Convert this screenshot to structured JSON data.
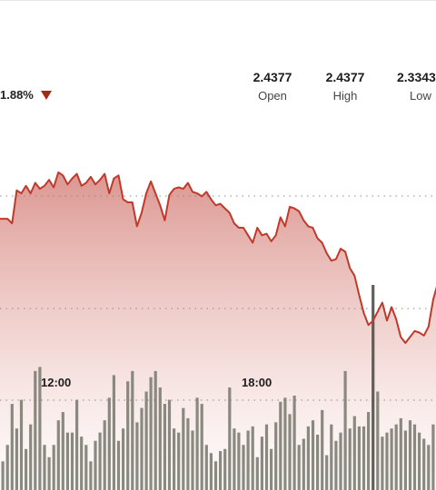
{
  "header": {
    "change_percent": "1.88%",
    "change_direction": "down",
    "down_color": "#a32a18"
  },
  "stats": {
    "open": {
      "value": "2.4377",
      "label": "Open"
    },
    "high": {
      "value": "2.4377",
      "label": "High"
    },
    "low": {
      "value": "2.3343",
      "label": "Low"
    }
  },
  "colors": {
    "line": "#c0392b",
    "area_top": "#d88a84",
    "volume_bar": "#7d7d73",
    "volume_bar_highlight": "#4f4f48"
  },
  "chart_data": {
    "type": "area",
    "time_labels": [
      "12:00",
      "18:00"
    ],
    "price": [
      2.401,
      2.401,
      2.401,
      2.398,
      2.42,
      2.418,
      2.423,
      2.418,
      2.425,
      2.421,
      2.423,
      2.427,
      2.422,
      2.432,
      2.43,
      2.424,
      2.428,
      2.431,
      2.423,
      2.425,
      2.429,
      2.424,
      2.427,
      2.431,
      2.418,
      2.428,
      2.43,
      2.414,
      2.412,
      2.412,
      2.396,
      2.405,
      2.418,
      2.426,
      2.418,
      2.41,
      2.4,
      2.417,
      2.421,
      2.422,
      2.421,
      2.425,
      2.419,
      2.418,
      2.416,
      2.419,
      2.414,
      2.41,
      2.411,
      2.408,
      2.405,
      2.398,
      2.395,
      2.395,
      2.39,
      2.385,
      2.395,
      2.39,
      2.391,
      2.386,
      2.39,
      2.402,
      2.396,
      2.409,
      2.408,
      2.406,
      2.4,
      2.396,
      2.395,
      2.388,
      2.385,
      2.378,
      2.373,
      2.374,
      2.381,
      2.379,
      2.368,
      2.363,
      2.35,
      2.338,
      2.33,
      2.333,
      2.339,
      2.345,
      2.333,
      2.342,
      2.334,
      2.322,
      2.318,
      2.322,
      2.326,
      2.325,
      2.323,
      2.329,
      2.347,
      2.358
    ],
    "volume": [
      10,
      14,
      22,
      42,
      30,
      44,
      20,
      32,
      58,
      60,
      22,
      16,
      22,
      34,
      38,
      28,
      28,
      44,
      26,
      22,
      14,
      24,
      28,
      34,
      45,
      56,
      24,
      30,
      53,
      58,
      33,
      40,
      48,
      55,
      58,
      50,
      42,
      44,
      30,
      28,
      40,
      35,
      29,
      45,
      42,
      22,
      18,
      14,
      19,
      20,
      50,
      30,
      28,
      22,
      29,
      31,
      16,
      26,
      32,
      20,
      33,
      43,
      45,
      37,
      46,
      22,
      25,
      31,
      34,
      27,
      39,
      17,
      32,
      24,
      28,
      58,
      30,
      36,
      31,
      31,
      38,
      100,
      48,
      26,
      28,
      30,
      32,
      35,
      29,
      34,
      32,
      28,
      25,
      22,
      32,
      42
    ]
  }
}
